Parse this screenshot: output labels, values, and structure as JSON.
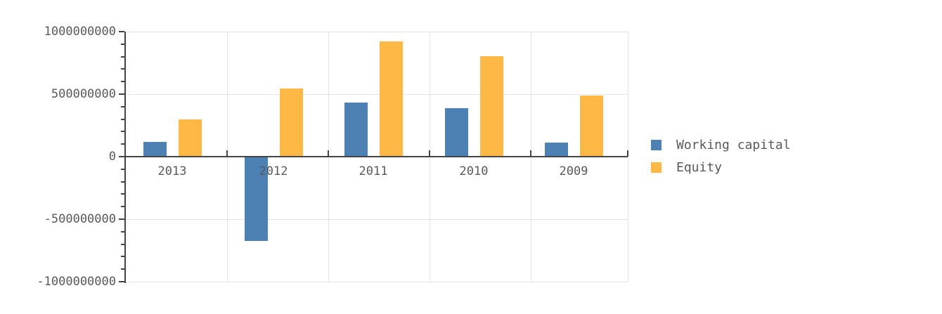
{
  "chart_data": {
    "type": "bar",
    "title": "",
    "categories": [
      "2013",
      "2012",
      "2011",
      "2010",
      "2009"
    ],
    "series": [
      {
        "name": "Working capital",
        "color": "#4d80b3",
        "values": [
          120000000,
          -670000000,
          430000000,
          390000000,
          110000000
        ]
      },
      {
        "name": "Equity",
        "color": "#fdb845",
        "values": [
          300000000,
          545000000,
          920000000,
          805000000,
          490000000
        ]
      }
    ],
    "ylim": [
      -1000000000,
      1000000000
    ],
    "ytick_values": [
      1000000000,
      500000000,
      0,
      -500000000,
      -1000000000
    ],
    "ytick_labels": [
      "1000000000",
      "500000000",
      "0",
      "-500000000",
      "-1000000000"
    ],
    "minor_tick_step": 100000000,
    "grid": true,
    "legend_position": "right",
    "colors": {
      "axis": "#454545",
      "grid": "#e3e3e3",
      "text": "#58595b",
      "background": "#ffffff"
    }
  }
}
